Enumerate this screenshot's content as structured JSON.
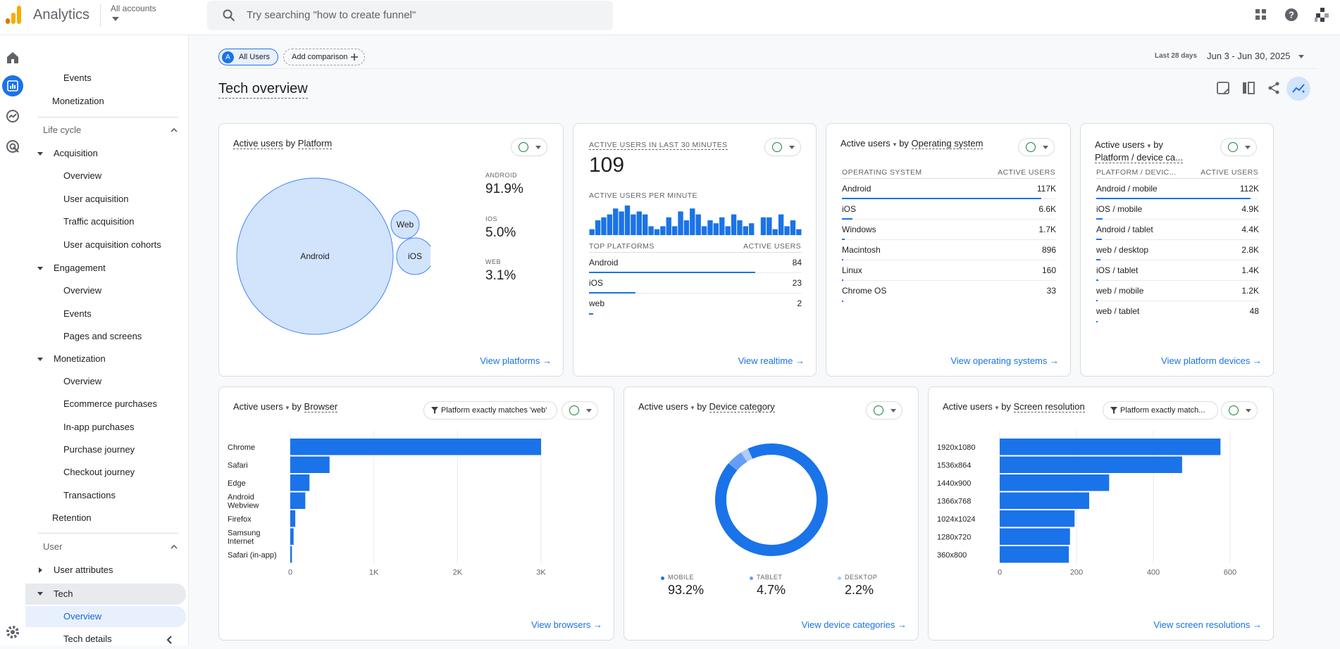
{
  "app": {
    "brand": "Analytics",
    "account": "All accounts",
    "search_placeholder": "Try searching \"how to create funnel\""
  },
  "nav": {
    "items": [
      {
        "label": "Events",
        "level": 2
      },
      {
        "label": "Monetization",
        "level": 1
      }
    ],
    "lifecycle": "Life cycle",
    "acquisition": "Acquisition",
    "acq_items": [
      "Overview",
      "User acquisition",
      "Traffic acquisition",
      "User acquisition cohorts"
    ],
    "engagement": "Engagement",
    "eng_items": [
      "Overview",
      "Events",
      "Pages and screens"
    ],
    "monetization": "Monetization",
    "mon_items": [
      "Overview",
      "Ecommerce purchases",
      "In-app purchases",
      "Purchase journey",
      "Checkout journey",
      "Transactions"
    ],
    "retention": "Retention",
    "user": "User",
    "user_attributes": "User attributes",
    "tech": "Tech",
    "tech_overview": "Overview",
    "tech_details": "Tech details"
  },
  "toolbar": {
    "all_users": "All Users",
    "avatar": "A",
    "add_comparison": "Add comparison",
    "date_label": "Last 28 days",
    "date_range": "Jun 3 - Jun 30, 2025"
  },
  "page": {
    "title": "Tech overview"
  },
  "platform_card": {
    "title_a": "Active users",
    "title_b": "by",
    "title_c": "Platform",
    "bubbles": [
      {
        "label": "Android"
      },
      {
        "label": "Web"
      },
      {
        "label": "iOS"
      }
    ],
    "metrics": [
      {
        "label": "ANDROID",
        "value": "91.9%"
      },
      {
        "label": "IOS",
        "value": "5.0%"
      },
      {
        "label": "WEB",
        "value": "3.1%"
      }
    ],
    "link": "View platforms"
  },
  "realtime_card": {
    "label": "ACTIVE USERS IN LAST 30 MINUTES",
    "value": "109",
    "per_minute": "ACTIVE USERS PER MINUTE",
    "per_minute_values": [
      2,
      5,
      6,
      7,
      9,
      8,
      10,
      7,
      8,
      7,
      3,
      2,
      3,
      6,
      3,
      8,
      5,
      9,
      7,
      3,
      5,
      4,
      6,
      3,
      7,
      5,
      3,
      4,
      0,
      6,
      6,
      2,
      7,
      3,
      5,
      2
    ],
    "col1": "TOP PLATFORMS",
    "col2": "ACTIVE USERS",
    "rows": [
      {
        "label": "Android",
        "value": "84",
        "frac": 0.78
      },
      {
        "label": "iOS",
        "value": "23",
        "frac": 0.22
      },
      {
        "label": "web",
        "value": "2",
        "frac": 0.02
      }
    ],
    "link": "View realtime"
  },
  "os_card": {
    "title_a": "Active users",
    "title_b": "by",
    "title_c": "Operating system",
    "col1": "OPERATING SYSTEM",
    "col2": "ACTIVE USERS",
    "rows": [
      {
        "label": "Android",
        "value": "117K",
        "frac": 0.93
      },
      {
        "label": "iOS",
        "value": "6.6K",
        "frac": 0.05
      },
      {
        "label": "Windows",
        "value": "1.7K",
        "frac": 0.014
      },
      {
        "label": "Macintosh",
        "value": "896",
        "frac": 0.008
      },
      {
        "label": "Linux",
        "value": "160",
        "frac": 0.004
      },
      {
        "label": "Chrome OS",
        "value": "33",
        "frac": 0.002
      }
    ],
    "link": "View operating systems"
  },
  "device_card": {
    "title_a": "Active users",
    "title_b": "by",
    "title_c": "Platform / device ca...",
    "col1": "PLATFORM / DEVIC...",
    "col2": "ACTIVE USERS",
    "rows": [
      {
        "label": "Android / mobile",
        "value": "112K",
        "frac": 0.95
      },
      {
        "label": "iOS / mobile",
        "value": "4.9K",
        "frac": 0.04
      },
      {
        "label": "Android / tablet",
        "value": "4.4K",
        "frac": 0.035
      },
      {
        "label": "web / desktop",
        "value": "2.8K",
        "frac": 0.025
      },
      {
        "label": "iOS / tablet",
        "value": "1.4K",
        "frac": 0.012
      },
      {
        "label": "web / mobile",
        "value": "1.2K",
        "frac": 0.01
      },
      {
        "label": "web / tablet",
        "value": "48",
        "frac": 0.003
      }
    ],
    "link": "View platform devices"
  },
  "browser_card": {
    "title_a": "Active users",
    "title_b": "by",
    "title_c": "Browser",
    "filter": "Platform exactly matches 'web'",
    "link": "View browsers"
  },
  "devcat_card": {
    "title_a": "Active users",
    "title_b": "by",
    "title_c": "Device category",
    "legend": [
      {
        "label": "MOBILE",
        "value": "93.2%"
      },
      {
        "label": "TABLET",
        "value": "4.7%"
      },
      {
        "label": "DESKTOP",
        "value": "2.2%"
      }
    ],
    "link": "View device categories"
  },
  "screen_card": {
    "title_a": "Active users",
    "title_b": "by",
    "title_c": "Screen resolution",
    "filter": "Platform exactly match...",
    "link": "View screen resolutions"
  },
  "colors": {
    "primary": "#1a73e8",
    "bubble_fill": "#d2e3fc",
    "bubble_stroke": "#4285f4",
    "tablet": "#669df6",
    "desktop": "#aecbfa"
  },
  "chart_data": [
    {
      "type": "bar",
      "orientation": "horizontal",
      "categories": [
        "Chrome",
        "Safari",
        "Edge",
        "Android Webview",
        "Firefox",
        "Samsung Internet",
        "Safari (in-app)"
      ],
      "values": [
        3000,
        470,
        230,
        180,
        60,
        40,
        20
      ],
      "xlim": [
        0,
        3000
      ],
      "xticks": [
        "0",
        "1K",
        "2K",
        "3K"
      ],
      "grid": true
    },
    {
      "type": "pie",
      "categories": [
        "MOBILE",
        "TABLET",
        "DESKTOP"
      ],
      "values": [
        93.2,
        4.7,
        2.2
      ]
    },
    {
      "type": "bar",
      "orientation": "horizontal",
      "categories": [
        "1920x1080",
        "1536x864",
        "1440x900",
        "1366x768",
        "1024x1024",
        "1280x720",
        "360x800"
      ],
      "values": [
        575,
        475,
        285,
        233,
        195,
        183,
        180
      ],
      "xlim": [
        0,
        600
      ],
      "xticks": [
        "0",
        "200",
        "400",
        "600"
      ],
      "grid": true
    }
  ]
}
